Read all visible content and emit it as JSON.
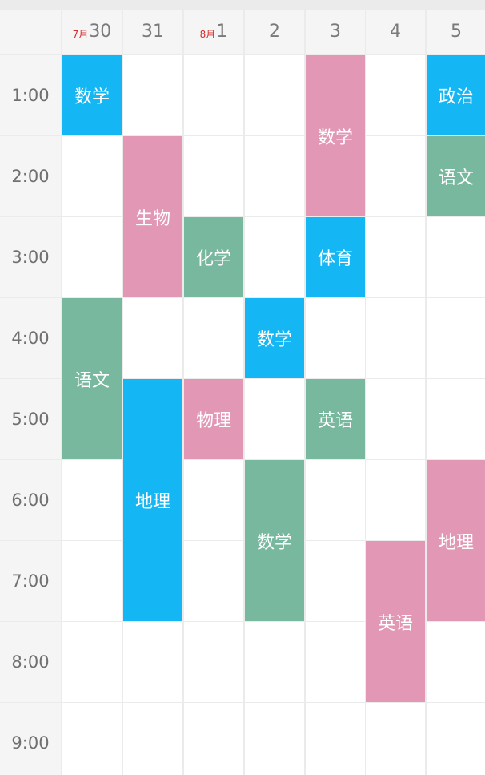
{
  "colors": {
    "blue": "#14b6f4",
    "pink": "#e297b4",
    "green": "#78b89f"
  },
  "header": {
    "days": [
      {
        "month": "7月",
        "day": "30"
      },
      {
        "month": "",
        "day": "31"
      },
      {
        "month": "8月",
        "day": "1"
      },
      {
        "month": "",
        "day": "2"
      },
      {
        "month": "",
        "day": "3"
      },
      {
        "month": "",
        "day": "4"
      },
      {
        "month": "",
        "day": "5"
      }
    ]
  },
  "times": [
    "1:00",
    "2:00",
    "3:00",
    "4:00",
    "5:00",
    "6:00",
    "7:00",
    "8:00",
    "9:00"
  ],
  "courses": [
    {
      "name": "数学",
      "day": 0,
      "start": 1,
      "span": 1,
      "color": "blue"
    },
    {
      "name": "语文",
      "day": 0,
      "start": 4,
      "span": 2,
      "color": "green"
    },
    {
      "name": "生物",
      "day": 1,
      "start": 2,
      "span": 2,
      "color": "pink"
    },
    {
      "name": "地理",
      "day": 1,
      "start": 5,
      "span": 3,
      "color": "blue"
    },
    {
      "name": "化学",
      "day": 2,
      "start": 3,
      "span": 1,
      "color": "green"
    },
    {
      "name": "物理",
      "day": 2,
      "start": 5,
      "span": 1,
      "color": "pink"
    },
    {
      "name": "数学",
      "day": 3,
      "start": 4,
      "span": 1,
      "color": "blue"
    },
    {
      "name": "数学",
      "day": 3,
      "start": 6,
      "span": 2,
      "color": "green"
    },
    {
      "name": "数学",
      "day": 4,
      "start": 1,
      "span": 2,
      "color": "pink"
    },
    {
      "name": "体育",
      "day": 4,
      "start": 3,
      "span": 1,
      "color": "blue"
    },
    {
      "name": "英语",
      "day": 4,
      "start": 5,
      "span": 1,
      "color": "green"
    },
    {
      "name": "英语",
      "day": 5,
      "start": 7,
      "span": 2,
      "color": "pink"
    },
    {
      "name": "政治",
      "day": 6,
      "start": 1,
      "span": 1,
      "color": "blue"
    },
    {
      "name": "语文",
      "day": 6,
      "start": 2,
      "span": 1,
      "color": "green"
    },
    {
      "name": "地理",
      "day": 6,
      "start": 6,
      "span": 2,
      "color": "pink"
    }
  ]
}
